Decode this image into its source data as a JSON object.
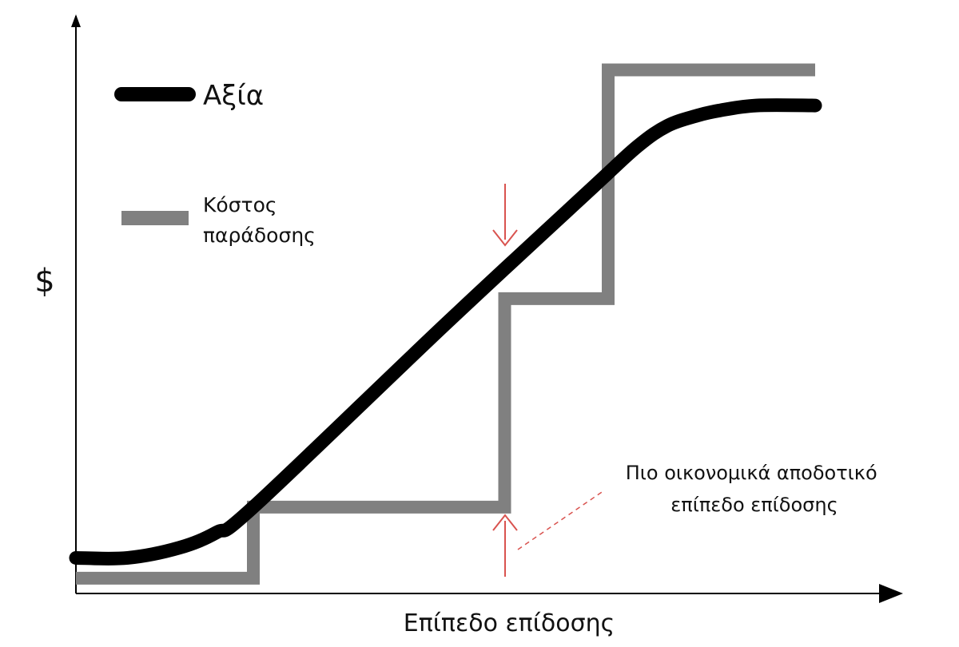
{
  "chart_data": {
    "type": "line",
    "title": "",
    "xlabel": "Επίπεδο επίδοσης",
    "ylabel": "$",
    "grid": false,
    "legend_position": "top-left",
    "xlim": [
      0,
      100
    ],
    "ylim": [
      0,
      100
    ],
    "series": [
      {
        "name": "Αξία",
        "color": "#000000",
        "style": "smooth",
        "x": [
          0,
          7,
          14,
          19,
          24,
          50,
          70,
          76,
          80,
          84,
          87,
          92,
          100
        ],
        "y": [
          7,
          7,
          9,
          12,
          17,
          53,
          80,
          88,
          92,
          94,
          95,
          96,
          96
        ]
      },
      {
        "name": "Κόστος παράδοσης",
        "color": "#808080",
        "style": "step",
        "x": [
          0,
          24,
          24,
          58,
          58,
          72,
          72,
          100
        ],
        "y": [
          3,
          3,
          17,
          17,
          58,
          58,
          103,
          103
        ]
      }
    ],
    "annotation": {
      "text": [
        "Πιο οικονομικά αποδοτικό",
        "επίπεδο επίδοσης"
      ],
      "x": 58,
      "arrow_color": "#d9534f"
    }
  }
}
